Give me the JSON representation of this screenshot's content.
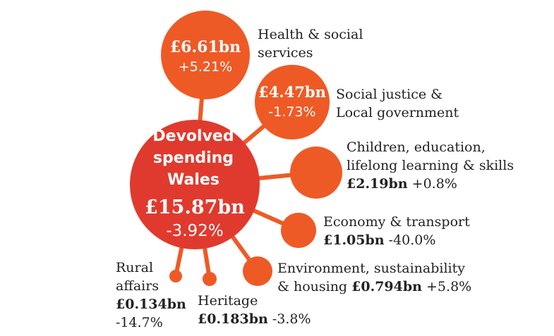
{
  "colors": {
    "center": "#e03a2e",
    "bubble": "#ee5a26",
    "connector": "#ee5a26",
    "text": "#222222",
    "on_bubble": "#ffffff"
  },
  "center": {
    "line1": "Devolved",
    "line2": "spending",
    "line3": "Wales",
    "amount": "£15.87bn",
    "change": "-3.92%"
  },
  "bubbles": [
    {
      "id": "health",
      "label_line1": "Health & social",
      "label_line2": "services",
      "amount": "£6.61bn",
      "change": "+5.21%",
      "value_bn": 6.61
    },
    {
      "id": "social-justice",
      "label_line1": "Social justice &",
      "label_line2": "Local government",
      "amount": "£4.47bn",
      "change": "-1.73%",
      "value_bn": 4.47
    },
    {
      "id": "children",
      "label_line1": "Children, education,",
      "label_line2": "lifelong learning & skills",
      "amount": "£2.19bn",
      "change": "+0.8%",
      "value_bn": 2.19
    },
    {
      "id": "economy",
      "label_line1": "Economy & transport",
      "amount": "£1.05bn",
      "change": "-40.0%",
      "value_bn": 1.05
    },
    {
      "id": "environment",
      "label_line1": "Environment, sustainability",
      "label_line2": "& housing",
      "amount": "£0.794bn",
      "change": "+5.8%",
      "value_bn": 0.794
    },
    {
      "id": "heritage",
      "label_line1": "Heritage",
      "amount": "£0.183bn",
      "change": "-3.8%",
      "value_bn": 0.183
    },
    {
      "id": "rural",
      "label_line1": "Rural",
      "label_line2": "affairs",
      "amount": "£0.134bn",
      "change": "-14.7%",
      "value_bn": 0.134
    }
  ]
}
